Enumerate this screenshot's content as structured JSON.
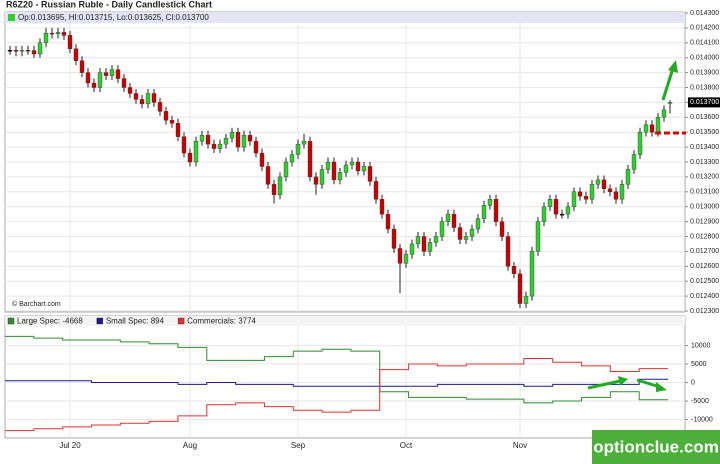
{
  "chart_data": [
    {
      "type": "candlestick",
      "title": "R6Z20 - Russian Ruble - Daily Candlestick Chart",
      "legend_text": "Op:0.013695, HI:0.013715, Lo:0.013625, Cl:0.013700",
      "source": "© Barchart.com",
      "watermark": "optionclue.com",
      "up_color": "#33cc33",
      "down_color": "#cc0000",
      "flat_color": "#000000",
      "categories": [
        null,
        null,
        null,
        null,
        null,
        null,
        null,
        null,
        null,
        null,
        "Jul 20",
        null,
        null,
        null,
        null,
        null,
        null,
        null,
        null,
        null,
        null,
        null,
        null,
        null,
        null,
        null,
        null,
        null,
        null,
        null,
        "Aug",
        null,
        null,
        null,
        null,
        null,
        null,
        null,
        null,
        null,
        null,
        null,
        null,
        null,
        null,
        null,
        null,
        null,
        "Sep",
        null,
        null,
        null,
        null,
        null,
        null,
        null,
        null,
        null,
        null,
        null,
        null,
        null,
        null,
        null,
        null,
        null,
        "Oct",
        null,
        null,
        null,
        null,
        null,
        null,
        null,
        null,
        null,
        null,
        null,
        null,
        null,
        null,
        null,
        null,
        null,
        null,
        "Nov",
        null,
        null,
        null,
        null,
        null,
        null,
        null,
        null,
        null,
        null,
        null,
        null,
        null,
        null,
        null,
        null,
        null,
        null,
        null,
        null,
        null,
        null,
        null,
        null,
        null
      ],
      "open": [
        0.01405,
        0.01405,
        0.014045,
        0.01405,
        0.014048,
        0.014025,
        0.0141,
        0.014165,
        0.01416,
        0.01417,
        0.01415,
        0.01406,
        0.01398,
        0.0139,
        0.01383,
        0.0138,
        0.0139,
        0.01388,
        0.01392,
        0.01386,
        0.0138,
        0.01376,
        0.01372,
        0.01369,
        0.01376,
        0.0137,
        0.01364,
        0.01358,
        0.01356,
        0.01347,
        0.01336,
        0.0133,
        0.01344,
        0.01348,
        0.01342,
        0.01339,
        0.01342,
        0.01346,
        0.0135,
        0.0134,
        0.01348,
        0.01344,
        0.01336,
        0.01327,
        0.01315,
        0.01308,
        0.0132,
        0.0133,
        0.01335,
        0.01342,
        0.01344,
        0.0132,
        0.01315,
        0.01325,
        0.0133,
        0.01318,
        0.01323,
        0.01328,
        0.0133,
        0.01324,
        0.01327,
        0.01317,
        0.01305,
        0.01295,
        0.01285,
        0.01272,
        0.01262,
        0.01268,
        0.01275,
        0.0128,
        0.0127,
        0.01276,
        0.0128,
        0.0129,
        0.01295,
        0.01286,
        0.01278,
        0.0128,
        0.01285,
        0.01292,
        0.01301,
        0.01305,
        0.0129,
        0.0128,
        0.0126,
        0.01255,
        0.01235,
        0.0124,
        0.0127,
        0.0129,
        0.013,
        0.01305,
        0.01295,
        0.01295,
        0.013,
        0.0131,
        0.01307,
        0.01305,
        0.01315,
        0.01318,
        0.01312,
        0.0131,
        0.01305,
        0.01315,
        0.01325,
        0.01335,
        0.0135,
        0.01355,
        0.0135,
        0.0136,
        0.013695
      ],
      "high": [
        0.01408,
        0.01408,
        0.01408,
        0.01408,
        0.01408,
        0.01413,
        0.0142,
        0.0142,
        0.0142,
        0.0142,
        0.01418,
        0.01409,
        0.01401,
        0.01393,
        0.01386,
        0.01393,
        0.01393,
        0.01395,
        0.01395,
        0.01389,
        0.01383,
        0.01379,
        0.01375,
        0.01379,
        0.01379,
        0.01373,
        0.01367,
        0.01361,
        0.01359,
        0.0135,
        0.01339,
        0.01347,
        0.01351,
        0.01351,
        0.01345,
        0.01345,
        0.01349,
        0.01353,
        0.01353,
        0.01351,
        0.01351,
        0.01347,
        0.01339,
        0.0133,
        0.01318,
        0.01323,
        0.01333,
        0.01338,
        0.01345,
        0.01349,
        0.01347,
        0.01323,
        0.01328,
        0.01333,
        0.01333,
        0.01326,
        0.01331,
        0.01333,
        0.01333,
        0.0133,
        0.0133,
        0.0132,
        0.01308,
        0.01298,
        0.01288,
        0.01275,
        0.01271,
        0.01278,
        0.01283,
        0.01283,
        0.01279,
        0.01283,
        0.01293,
        0.01298,
        0.01298,
        0.01289,
        0.01283,
        0.01288,
        0.01295,
        0.01304,
        0.01308,
        0.01308,
        0.01293,
        0.01283,
        0.01263,
        0.01258,
        0.01243,
        0.01273,
        0.01293,
        0.01303,
        0.01308,
        0.01308,
        0.01298,
        0.01303,
        0.01313,
        0.01313,
        0.0131,
        0.01318,
        0.01321,
        0.01321,
        0.01315,
        0.01313,
        0.01318,
        0.01328,
        0.01338,
        0.01353,
        0.01358,
        0.01358,
        0.01363,
        0.01368,
        0.013715
      ],
      "low": [
        0.01402,
        0.01401,
        0.01401,
        0.01402,
        0.014,
        0.014,
        0.01407,
        0.01413,
        0.01413,
        0.01412,
        0.01403,
        0.01395,
        0.01387,
        0.0138,
        0.01377,
        0.01377,
        0.01385,
        0.01385,
        0.01383,
        0.01377,
        0.01373,
        0.01369,
        0.01366,
        0.01366,
        0.01367,
        0.01361,
        0.01355,
        0.01353,
        0.01344,
        0.01333,
        0.01327,
        0.01327,
        0.01341,
        0.01339,
        0.01336,
        0.01336,
        0.01339,
        0.01343,
        0.01337,
        0.01337,
        0.01341,
        0.01333,
        0.01324,
        0.01312,
        0.01302,
        0.01305,
        0.01317,
        0.01327,
        0.01332,
        0.01339,
        0.01317,
        0.01308,
        0.01312,
        0.01322,
        0.01315,
        0.01315,
        0.0132,
        0.01325,
        0.01321,
        0.01321,
        0.01314,
        0.01302,
        0.01292,
        0.01282,
        0.01269,
        0.01242,
        0.01259,
        0.01265,
        0.01272,
        0.01267,
        0.01267,
        0.01273,
        0.01277,
        0.01287,
        0.01283,
        0.01275,
        0.01275,
        0.01277,
        0.01282,
        0.01289,
        0.01298,
        0.01287,
        0.01277,
        0.01257,
        0.01252,
        0.01232,
        0.01232,
        0.01237,
        0.01267,
        0.01287,
        0.01297,
        0.01292,
        0.01292,
        0.01292,
        0.01297,
        0.01304,
        0.01302,
        0.01302,
        0.01312,
        0.01309,
        0.01307,
        0.01302,
        0.01302,
        0.01312,
        0.01322,
        0.01332,
        0.01347,
        0.01347,
        0.01347,
        0.01357,
        0.013625
      ],
      "close": [
        0.01405,
        0.014045,
        0.01405,
        0.014048,
        0.014025,
        0.0141,
        0.014165,
        0.01416,
        0.01417,
        0.01415,
        0.01406,
        0.01398,
        0.0139,
        0.01383,
        0.0138,
        0.0139,
        0.01388,
        0.01392,
        0.01386,
        0.0138,
        0.01376,
        0.01372,
        0.01369,
        0.01376,
        0.0137,
        0.01364,
        0.01358,
        0.01356,
        0.01347,
        0.01336,
        0.0133,
        0.01344,
        0.01348,
        0.01342,
        0.01339,
        0.01342,
        0.01346,
        0.0135,
        0.0134,
        0.01348,
        0.01344,
        0.01336,
        0.01327,
        0.01315,
        0.01308,
        0.0132,
        0.0133,
        0.01335,
        0.01342,
        0.01344,
        0.0132,
        0.01315,
        0.01325,
        0.0133,
        0.01318,
        0.01323,
        0.01328,
        0.0133,
        0.01324,
        0.01327,
        0.01317,
        0.01305,
        0.01295,
        0.01285,
        0.01272,
        0.01262,
        0.01268,
        0.01275,
        0.0128,
        0.0127,
        0.01276,
        0.0128,
        0.0129,
        0.01295,
        0.01286,
        0.01278,
        0.0128,
        0.01285,
        0.01292,
        0.01301,
        0.01305,
        0.0129,
        0.0128,
        0.0126,
        0.01255,
        0.01235,
        0.0124,
        0.0127,
        0.0129,
        0.013,
        0.01305,
        0.01295,
        0.01295,
        0.013,
        0.0131,
        0.01307,
        0.01305,
        0.01315,
        0.01318,
        0.01312,
        0.0131,
        0.01305,
        0.01315,
        0.01325,
        0.01335,
        0.0135,
        0.01355,
        0.0135,
        0.0136,
        0.01365,
        0.0137
      ],
      "ylim": [
        0.0123,
        0.0143
      ],
      "yticks": [
        {
          "value": 0.0143,
          "label": "0.014300"
        },
        {
          "value": 0.0142,
          "label": "0.014200"
        },
        {
          "value": 0.0141,
          "label": "0.014100"
        },
        {
          "value": 0.014,
          "label": "0.014000"
        },
        {
          "value": 0.0139,
          "label": "0.013900"
        },
        {
          "value": 0.0138,
          "label": "0.013800"
        },
        {
          "value": 0.0137,
          "label": "0.013700"
        },
        {
          "value": 0.0136,
          "label": "0.013600"
        },
        {
          "value": 0.0135,
          "label": "0.013500"
        },
        {
          "value": 0.0134,
          "label": "0.013400"
        },
        {
          "value": 0.0133,
          "label": "0.013300"
        },
        {
          "value": 0.0132,
          "label": "0.013200"
        },
        {
          "value": 0.0131,
          "label": "0.013100"
        },
        {
          "value": 0.013,
          "label": "0.013000"
        },
        {
          "value": 0.0129,
          "label": "0.012900"
        },
        {
          "value": 0.0128,
          "label": "0.012800"
        },
        {
          "value": 0.0127,
          "label": "0.012700"
        },
        {
          "value": 0.0126,
          "label": "0.012600"
        },
        {
          "value": 0.0125,
          "label": "0.012500"
        },
        {
          "value": 0.0124,
          "label": "0.012400"
        },
        {
          "value": 0.0123,
          "label": "0.012300"
        }
      ],
      "grid": true
    },
    {
      "type": "step",
      "series": [
        {
          "label": "Large Spec: -4668",
          "color": "#2e8b2e",
          "values": [
            12500,
            12000,
            11500,
            11500,
            11000,
            10500,
            9500,
            6000,
            6000,
            7000,
            8500,
            9000,
            8500,
            -2500,
            -4000,
            -4000,
            -4500,
            -4500,
            -5500,
            -5000,
            -4000,
            -2500,
            -4668
          ]
        },
        {
          "label": "Small Spec: 894",
          "color": "#1a1a8c",
          "values": [
            500,
            500,
            500,
            0,
            0,
            0,
            -500,
            0,
            -500,
            -500,
            -1000,
            -1000,
            -1000,
            -1000,
            -1000,
            -500,
            -500,
            -500,
            -1000,
            -500,
            -500,
            -500,
            894
          ]
        },
        {
          "label": "Commercials: 3774",
          "color": "#e03030",
          "values": [
            -13000,
            -12500,
            -12000,
            -11500,
            -11000,
            -10500,
            -9000,
            -6000,
            -5500,
            -6500,
            -7500,
            -8000,
            -7500,
            3500,
            5000,
            4500,
            5000,
            5000,
            6500,
            5500,
            4500,
            3000,
            3774
          ]
        }
      ],
      "ylim": [
        -15000,
        18000
      ],
      "yticks": [
        10000,
        5000,
        0,
        -5000,
        -10000
      ],
      "grid": true
    }
  ]
}
